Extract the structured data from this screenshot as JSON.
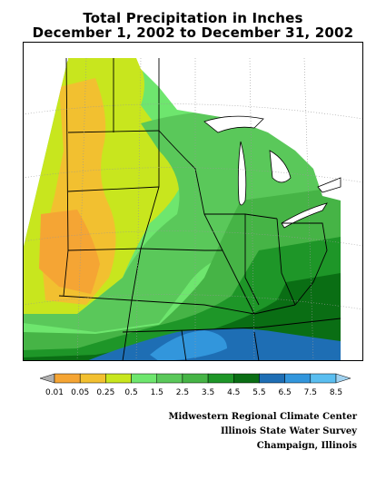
{
  "title": {
    "line1": "Total Precipitation in Inches",
    "line2": "December 1, 2002 to December 31, 2002"
  },
  "legend": {
    "values": [
      "0.01",
      "0.05",
      "0.25",
      "0.5",
      "1.5",
      "2.5",
      "3.5",
      "4.5",
      "5.5",
      "6.5",
      "7.5",
      "8.5"
    ],
    "colors": [
      "#b0b0b0",
      "#f5a534",
      "#f2c030",
      "#c8e61e",
      "#6ee66e",
      "#5ac85a",
      "#46b446",
      "#1e9628",
      "#0a6e14",
      "#1e6eb4",
      "#3296dc",
      "#5abef0",
      "#a0d2f0"
    ]
  },
  "credits": {
    "line1": "Midwestern Regional Climate Center",
    "line2": "Illinois State Water Survey",
    "line3": "Champaign, Illinois"
  },
  "colors": {
    "lt_05": "#f5a534",
    "0.05_0.25": "#f2c030",
    "0.25_0.5": "#c8e61e",
    "0.5_1.5": "#6ee66e",
    "1.5_2.5": "#5ac85a",
    "2.5_3.5": "#46b446",
    "3.5_4.5": "#1e9628",
    "4.5_5.5": "#0a6e14",
    "5.5_6.5": "#1e6eb4",
    "6.5_7.5": "#3296dc",
    "border": "#000000",
    "gridline": "#999999"
  }
}
